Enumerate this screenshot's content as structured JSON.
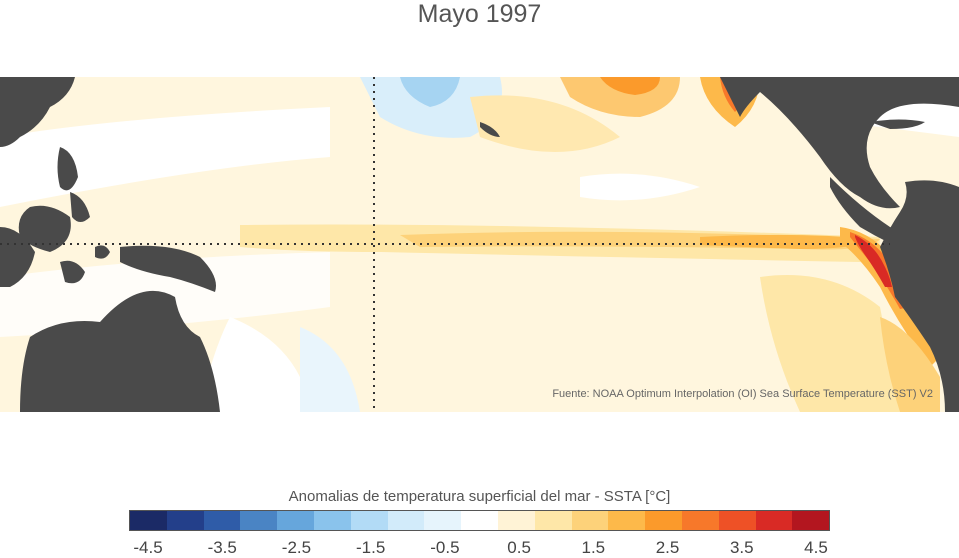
{
  "title": "Mayo 1997",
  "source": "Fuente: NOAA Optimum Interpolation (OI) Sea Surface Temperature (SST) V2",
  "colorbar": {
    "label": "Anomalias de temperatura superficial del mar - SSTA  [°C]",
    "colors": [
      "#1b2a66",
      "#233f8a",
      "#2f5ca8",
      "#4a84c4",
      "#66a6dc",
      "#8ac3ec",
      "#b2dbf6",
      "#d2ebfa",
      "#e6f4fc",
      "#ffffff",
      "#fff3d6",
      "#fee7a8",
      "#fdd27a",
      "#fdb94a",
      "#fb9a2b",
      "#f7782a",
      "#ee5126",
      "#d92a25",
      "#b3161f"
    ],
    "ticks": [
      "-4.5",
      "-3.5",
      "-2.5",
      "-1.5",
      "-0.5",
      "0.5",
      "1.5",
      "2.5",
      "3.5",
      "4.5"
    ]
  },
  "colors": {
    "land": "#4a4a4a",
    "equator_line": "#333333"
  }
}
